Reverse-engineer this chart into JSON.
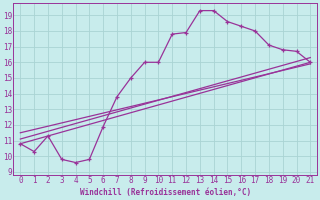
{
  "title": "",
  "xlabel": "Windchill (Refroidissement éolien,°C)",
  "ylabel": "",
  "bg_color": "#c8ecec",
  "grid_color": "#aad4d4",
  "line_color": "#993399",
  "xlim": [
    -0.5,
    21.5
  ],
  "ylim": [
    8.8,
    19.8
  ],
  "xticks": [
    0,
    1,
    2,
    3,
    4,
    5,
    6,
    7,
    8,
    9,
    10,
    11,
    12,
    13,
    14,
    15,
    16,
    17,
    18,
    19,
    20,
    21
  ],
  "yticks": [
    9,
    10,
    11,
    12,
    13,
    14,
    15,
    16,
    17,
    18,
    19
  ],
  "line1_x": [
    0,
    1,
    2,
    3,
    4,
    5,
    6,
    7,
    8,
    9,
    10,
    11,
    12,
    13,
    14,
    15,
    16,
    17,
    18,
    19,
    20,
    21
  ],
  "line1_y": [
    10.8,
    10.3,
    11.3,
    9.8,
    9.6,
    9.8,
    11.9,
    13.8,
    15.0,
    16.0,
    16.0,
    17.8,
    17.9,
    19.3,
    19.3,
    18.6,
    18.3,
    18.0,
    17.1,
    16.8,
    16.7,
    16.0
  ],
  "line2_x": [
    0,
    21
  ],
  "line2_y": [
    10.8,
    16.0
  ],
  "line3_x": [
    0,
    21
  ],
  "line3_y": [
    11.1,
    16.3
  ],
  "line4_x": [
    0,
    21
  ],
  "line4_y": [
    11.5,
    15.9
  ],
  "tick_fontsize": 5.5,
  "xlabel_fontsize": 5.5,
  "marker_size": 3,
  "linewidth": 0.9
}
